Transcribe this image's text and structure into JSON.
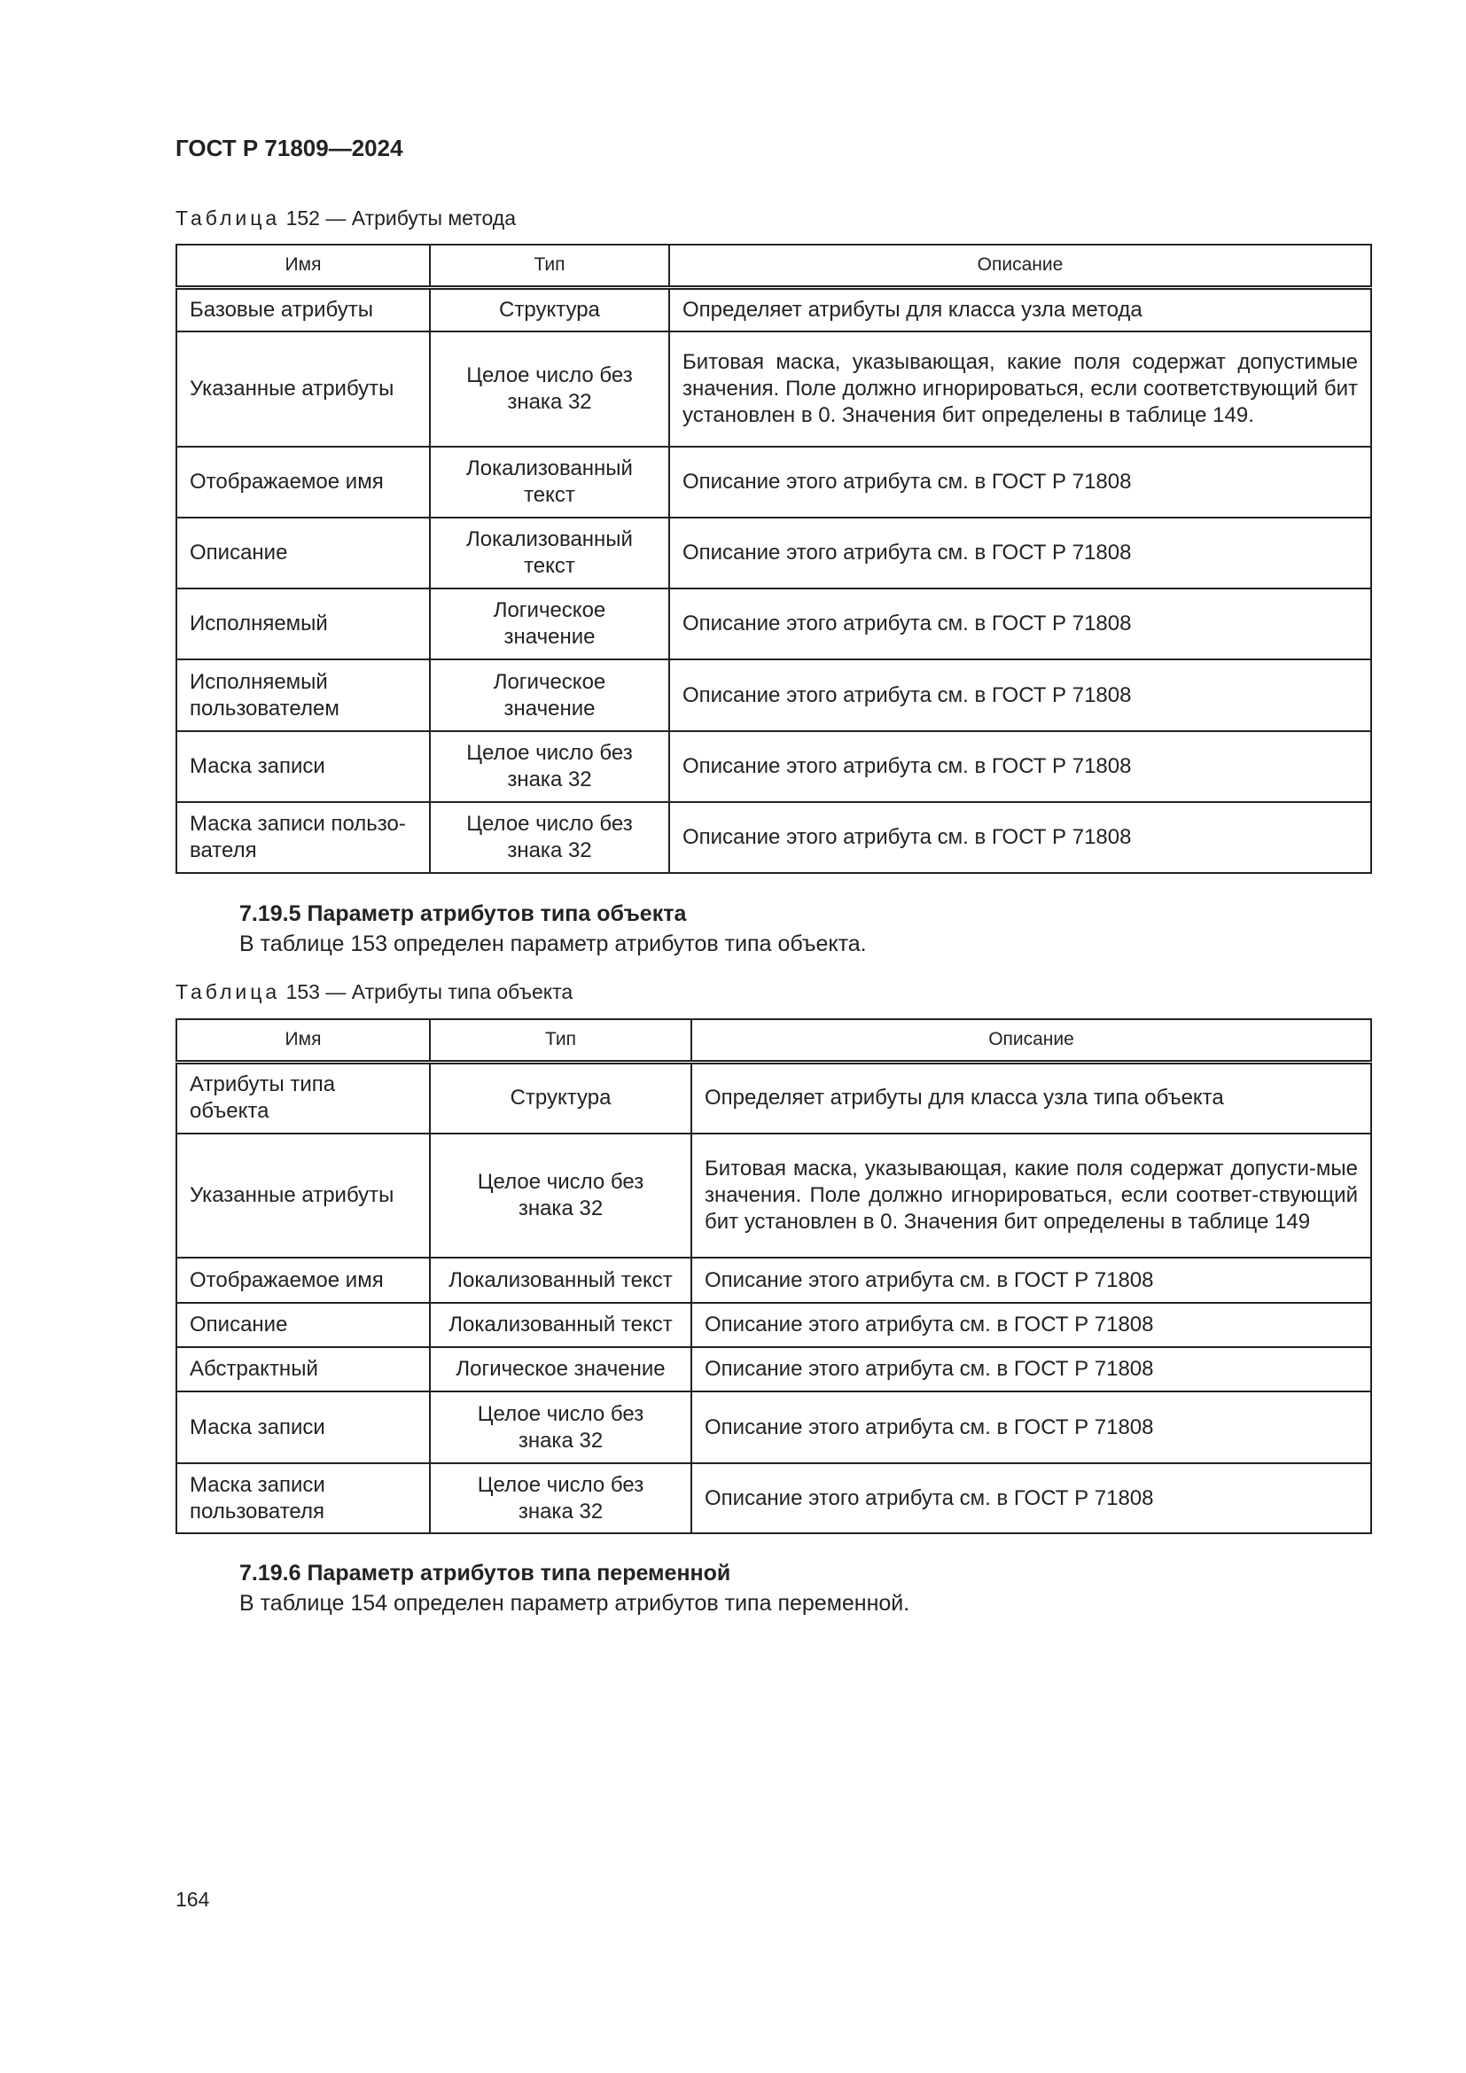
{
  "header": {
    "doc_title": "ГОСТ Р 71809—2024"
  },
  "table152": {
    "caption_prefix": "Таблица",
    "caption_rest": " 152 — Атрибуты метода",
    "columns": [
      "Имя",
      "Тип",
      "Описание"
    ],
    "rows": [
      [
        "Базовые атрибуты",
        "Структура",
        "Определяет атрибуты для класса узла метода"
      ],
      [
        "Указанные атрибуты",
        "Целое число без знака 32",
        "Битовая маска, указывающая, какие поля содержат допустимые значения. Поле должно игнорироваться, если соответствующий бит установлен в 0. Значения бит определены в таблице 149."
      ],
      [
        "Отображаемое имя",
        "Локализованный текст",
        "Описание этого атрибута см. в ГОСТ Р 71808"
      ],
      [
        "Описание",
        "Локализованный текст",
        "Описание этого атрибута см. в ГОСТ Р 71808"
      ],
      [
        "Исполняемый",
        "Логическое значение",
        "Описание этого атрибута см. в ГОСТ Р 71808"
      ],
      [
        "Исполняемый пользователем",
        "Логическое значение",
        "Описание этого атрибута см. в ГОСТ Р 71808"
      ],
      [
        "Маска записи",
        "Целое число без знака 32",
        "Описание этого атрибута см. в ГОСТ Р 71808"
      ],
      [
        "Маска записи пользо-вателя",
        "Целое число без знака 32",
        "Описание этого атрибута см. в ГОСТ Р 71808"
      ]
    ]
  },
  "section_7195": {
    "heading": "7.19.5 Параметр атрибутов типа объекта",
    "text": "В таблице 153 определен параметр атрибутов типа объекта."
  },
  "table153": {
    "caption_prefix": "Таблица",
    "caption_rest": " 153 — Атрибуты типа объекта",
    "columns": [
      "Имя",
      "Тип",
      "Описание"
    ],
    "rows": [
      [
        "Атрибуты типа объекта",
        "Структура",
        "Определяет атрибуты для класса узла типа объекта"
      ],
      [
        "Указанные атрибуты",
        "Целое число без знака 32",
        "Битовая маска, указывающая, какие поля содержат допусти-мые значения. Поле должно игнорироваться, если соответ-ствующий бит установлен в 0. Значения бит определены в таблице 149"
      ],
      [
        "Отображаемое имя",
        "Локализованный текст",
        "Описание этого атрибута см. в ГОСТ Р 71808"
      ],
      [
        "Описание",
        "Локализованный текст",
        "Описание этого атрибута см. в ГОСТ Р 71808"
      ],
      [
        "Абстрактный",
        "Логическое значение",
        "Описание этого атрибута см. в ГОСТ Р 71808"
      ],
      [
        "Маска записи",
        "Целое число без знака 32",
        "Описание этого атрибута см. в ГОСТ Р 71808"
      ],
      [
        "Маска записи пользователя",
        "Целое число без знака 32",
        "Описание этого атрибута см. в ГОСТ Р 71808"
      ]
    ]
  },
  "section_7196": {
    "heading": "7.19.6 Параметр атрибутов типа переменной",
    "text": "В таблице 154 определен параметр атрибутов типа переменной."
  },
  "footer": {
    "page_number": "164"
  }
}
